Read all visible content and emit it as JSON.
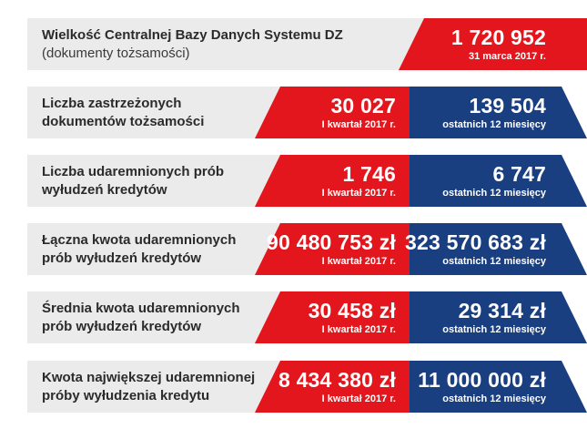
{
  "rows": [
    {
      "label": "Wielkość Centralnej Bazy Danych Systemu DZ",
      "label_sub": "(dokumenty tożsamości)",
      "red_value": "1 720 952",
      "red_caption": "31 marca 2017 r."
    },
    {
      "label_line1": "Liczba zastrzeżonych",
      "label_line2": "dokumentów tożsamości",
      "red_value": "30 027",
      "red_caption": "I kwartał 2017 r.",
      "blue_value": "139 504",
      "blue_caption": "ostatnich 12 miesięcy"
    },
    {
      "label_line1": "Liczba udaremnionych prób",
      "label_line2": "wyłudzeń kredytów",
      "red_value": "1 746",
      "red_caption": "I kwartał 2017 r.",
      "blue_value": "6 747",
      "blue_caption": "ostatnich 12 miesięcy"
    },
    {
      "label_line1": "Łączna kwota udaremnionych",
      "label_line2": "prób wyłudzeń kredytów",
      "red_value": "90 480 753 zł",
      "red_caption": "I kwartał 2017 r.",
      "blue_value": "323 570 683 zł",
      "blue_caption": "ostatnich 12 miesięcy"
    },
    {
      "label_line1": "Średnia kwota udaremnionych",
      "label_line2": "prób wyłudzeń kredytów",
      "red_value": "30 458 zł",
      "red_caption": "I kwartał 2017 r.",
      "blue_value": "29 314 zł",
      "blue_caption": "ostatnich 12 miesięcy"
    },
    {
      "label_line1": "Kwota największej udaremnionej",
      "label_line2": "próby wyłudzenia kredytu",
      "red_value": "8 434 380 zł",
      "red_caption": "I kwartał 2017 r.",
      "blue_value": "11 000 000 zł",
      "blue_caption": "ostatnich 12 miesięcy"
    }
  ],
  "colors": {
    "red": "#e3161d",
    "blue": "#1a3f80",
    "grey": "#ebebeb",
    "text": "#2b2b2b"
  }
}
